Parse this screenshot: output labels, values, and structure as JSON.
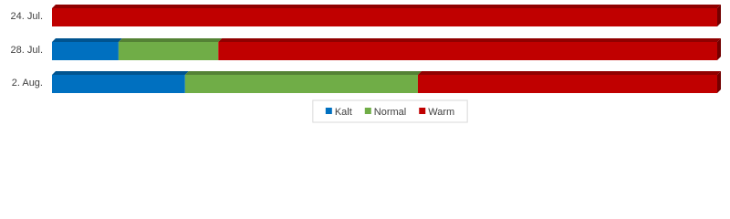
{
  "chart_data": {
    "type": "stacked-bar-horizontal",
    "categories": [
      "24. Jul.",
      "28. Jul.",
      "2. Aug."
    ],
    "series": [
      {
        "name": "Kalt",
        "color": "#0070c0",
        "values": [
          0,
          10,
          20
        ]
      },
      {
        "name": "Normal",
        "color": "#70ad47",
        "values": [
          0,
          15,
          35
        ]
      },
      {
        "name": "Warm",
        "color": "#c00000",
        "values": [
          100,
          75,
          45
        ]
      }
    ],
    "legend": "bottom"
  }
}
